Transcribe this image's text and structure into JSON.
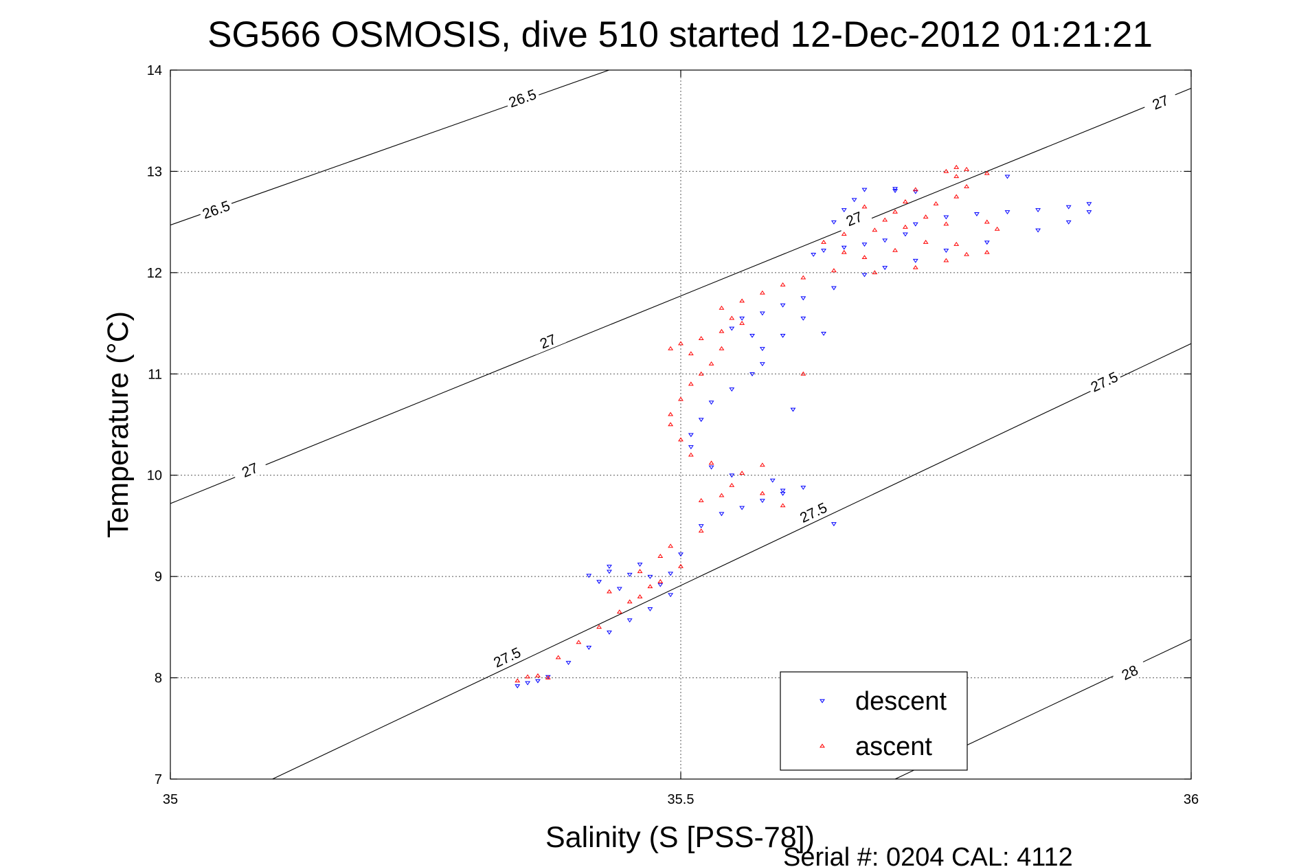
{
  "chart_data": {
    "type": "scatter",
    "title": "SG566 OSMOSIS, dive 510 started 12-Dec-2012 01:21:21",
    "xlabel": "Salinity (S [PSS-78])",
    "ylabel": "Temperature (°C)",
    "xlim": [
      35,
      36
    ],
    "ylim": [
      7,
      14
    ],
    "xticks": [
      "35",
      "35.5",
      "36"
    ],
    "yticks": [
      "7",
      "8",
      "9",
      "10",
      "11",
      "12",
      "13",
      "14"
    ],
    "grid": true,
    "legend_position": "bottom-right",
    "footer": "Serial #: 0204  CAL: 4112",
    "isopycnals": [
      {
        "label": "26.5",
        "points": [
          [
            35.0,
            12.47
          ],
          [
            36.0,
            16.03
          ]
        ],
        "labels_at": [
          [
            35.045,
            12.62
          ],
          [
            35.345,
            13.72
          ]
        ]
      },
      {
        "label": "27",
        "points": [
          [
            35.0,
            9.72
          ],
          [
            36.0,
            13.82
          ]
        ],
        "labels_at": [
          [
            35.078,
            10.05
          ],
          [
            35.37,
            11.32
          ],
          [
            35.67,
            12.53
          ],
          [
            35.97,
            13.68
          ]
        ]
      },
      {
        "label": "27.5",
        "points": [
          [
            35.1,
            7.0
          ],
          [
            36.0,
            11.3
          ]
        ],
        "labels_at": [
          [
            35.33,
            8.2
          ],
          [
            35.63,
            9.63
          ],
          [
            35.915,
            10.92
          ]
        ]
      },
      {
        "label": "28",
        "points": [
          [
            35.71,
            7.0
          ],
          [
            36.0,
            8.38
          ]
        ],
        "labels_at": [
          [
            35.94,
            8.05
          ]
        ]
      }
    ],
    "series": [
      {
        "name": "descent",
        "color": "#0000ff",
        "marker": "triangle-down",
        "points": [
          [
            35.34,
            7.92
          ],
          [
            35.35,
            7.95
          ],
          [
            35.36,
            7.97
          ],
          [
            35.37,
            8.01
          ],
          [
            35.39,
            8.15
          ],
          [
            35.41,
            8.3
          ],
          [
            35.43,
            8.45
          ],
          [
            35.45,
            8.57
          ],
          [
            35.47,
            8.68
          ],
          [
            35.49,
            8.82
          ],
          [
            35.44,
            8.88
          ],
          [
            35.42,
            8.95
          ],
          [
            35.41,
            9.01
          ],
          [
            35.43,
            9.05
          ],
          [
            35.45,
            9.02
          ],
          [
            35.47,
            9.0
          ],
          [
            35.43,
            9.1
          ],
          [
            35.46,
            9.12
          ],
          [
            35.49,
            9.03
          ],
          [
            35.48,
            8.92
          ],
          [
            35.5,
            9.22
          ],
          [
            35.52,
            9.5
          ],
          [
            35.54,
            9.62
          ],
          [
            35.56,
            9.68
          ],
          [
            35.58,
            9.75
          ],
          [
            35.6,
            9.82
          ],
          [
            35.62,
            9.88
          ],
          [
            35.59,
            9.95
          ],
          [
            35.55,
            10.0
          ],
          [
            35.53,
            10.08
          ],
          [
            35.51,
            10.28
          ],
          [
            35.51,
            10.4
          ],
          [
            35.52,
            10.55
          ],
          [
            35.53,
            10.72
          ],
          [
            35.55,
            10.85
          ],
          [
            35.57,
            11.0
          ],
          [
            35.58,
            11.1
          ],
          [
            35.58,
            11.25
          ],
          [
            35.57,
            11.38
          ],
          [
            35.55,
            11.45
          ],
          [
            35.56,
            11.55
          ],
          [
            35.58,
            11.6
          ],
          [
            35.6,
            11.68
          ],
          [
            35.62,
            11.75
          ],
          [
            35.65,
            11.85
          ],
          [
            35.68,
            11.98
          ],
          [
            35.7,
            12.05
          ],
          [
            35.73,
            12.12
          ],
          [
            35.76,
            12.22
          ],
          [
            35.8,
            12.3
          ],
          [
            35.85,
            12.42
          ],
          [
            35.88,
            12.5
          ],
          [
            35.9,
            12.6
          ],
          [
            35.88,
            12.65
          ],
          [
            35.85,
            12.62
          ],
          [
            35.82,
            12.6
          ],
          [
            35.79,
            12.58
          ],
          [
            35.76,
            12.55
          ],
          [
            35.73,
            12.48
          ],
          [
            35.72,
            12.38
          ],
          [
            35.7,
            12.32
          ],
          [
            35.68,
            12.28
          ],
          [
            35.66,
            12.25
          ],
          [
            35.64,
            12.22
          ],
          [
            35.63,
            12.18
          ],
          [
            35.65,
            12.5
          ],
          [
            35.66,
            12.62
          ],
          [
            35.67,
            12.72
          ],
          [
            35.68,
            12.82
          ],
          [
            35.71,
            12.81
          ],
          [
            35.71,
            12.83
          ],
          [
            35.73,
            12.8
          ],
          [
            35.82,
            12.95
          ],
          [
            35.9,
            12.68
          ],
          [
            35.6,
            11.38
          ],
          [
            35.62,
            11.55
          ],
          [
            35.64,
            11.4
          ],
          [
            35.61,
            10.65
          ],
          [
            35.6,
            9.85
          ],
          [
            35.65,
            9.52
          ]
        ]
      },
      {
        "name": "ascent",
        "color": "#ff0000",
        "marker": "triangle-up",
        "points": [
          [
            35.34,
            7.97
          ],
          [
            35.35,
            8.01
          ],
          [
            35.36,
            8.02
          ],
          [
            35.37,
            8.0
          ],
          [
            35.38,
            8.2
          ],
          [
            35.4,
            8.35
          ],
          [
            35.42,
            8.5
          ],
          [
            35.44,
            8.65
          ],
          [
            35.46,
            8.8
          ],
          [
            35.48,
            8.95
          ],
          [
            35.45,
            8.75
          ],
          [
            35.43,
            8.85
          ],
          [
            35.47,
            8.9
          ],
          [
            35.46,
            9.05
          ],
          [
            35.48,
            9.2
          ],
          [
            35.49,
            9.3
          ],
          [
            35.5,
            9.1
          ],
          [
            35.52,
            9.45
          ],
          [
            35.52,
            9.75
          ],
          [
            35.54,
            9.8
          ],
          [
            35.55,
            9.9
          ],
          [
            35.56,
            10.02
          ],
          [
            35.58,
            10.1
          ],
          [
            35.53,
            10.12
          ],
          [
            35.51,
            10.2
          ],
          [
            35.5,
            10.35
          ],
          [
            35.49,
            10.5
          ],
          [
            35.49,
            10.6
          ],
          [
            35.5,
            10.75
          ],
          [
            35.51,
            10.9
          ],
          [
            35.52,
            11.0
          ],
          [
            35.53,
            11.1
          ],
          [
            35.51,
            11.2
          ],
          [
            35.49,
            11.25
          ],
          [
            35.5,
            11.3
          ],
          [
            35.52,
            11.35
          ],
          [
            35.54,
            11.42
          ],
          [
            35.55,
            11.55
          ],
          [
            35.54,
            11.65
          ],
          [
            35.56,
            11.72
          ],
          [
            35.58,
            11.8
          ],
          [
            35.6,
            11.88
          ],
          [
            35.62,
            11.95
          ],
          [
            35.65,
            12.02
          ],
          [
            35.69,
            12.0
          ],
          [
            35.73,
            12.05
          ],
          [
            35.76,
            12.12
          ],
          [
            35.78,
            12.18
          ],
          [
            35.8,
            12.2
          ],
          [
            35.77,
            12.28
          ],
          [
            35.74,
            12.3
          ],
          [
            35.71,
            12.22
          ],
          [
            35.68,
            12.15
          ],
          [
            35.66,
            12.2
          ],
          [
            35.64,
            12.3
          ],
          [
            35.66,
            12.38
          ],
          [
            35.69,
            12.42
          ],
          [
            35.72,
            12.45
          ],
          [
            35.76,
            12.48
          ],
          [
            35.8,
            12.5
          ],
          [
            35.74,
            12.55
          ],
          [
            35.71,
            12.6
          ],
          [
            35.68,
            12.65
          ],
          [
            35.75,
            12.68
          ],
          [
            35.77,
            12.75
          ],
          [
            35.78,
            12.85
          ],
          [
            35.77,
            12.95
          ],
          [
            35.76,
            13.0
          ],
          [
            35.77,
            13.04
          ],
          [
            35.78,
            13.02
          ],
          [
            35.73,
            12.82
          ],
          [
            35.72,
            12.7
          ],
          [
            35.7,
            12.52
          ],
          [
            35.62,
            11.0
          ],
          [
            35.6,
            9.7
          ],
          [
            35.58,
            9.82
          ],
          [
            35.56,
            11.5
          ],
          [
            35.54,
            11.25
          ],
          [
            35.8,
            12.98
          ],
          [
            35.81,
            12.43
          ]
        ]
      }
    ]
  }
}
